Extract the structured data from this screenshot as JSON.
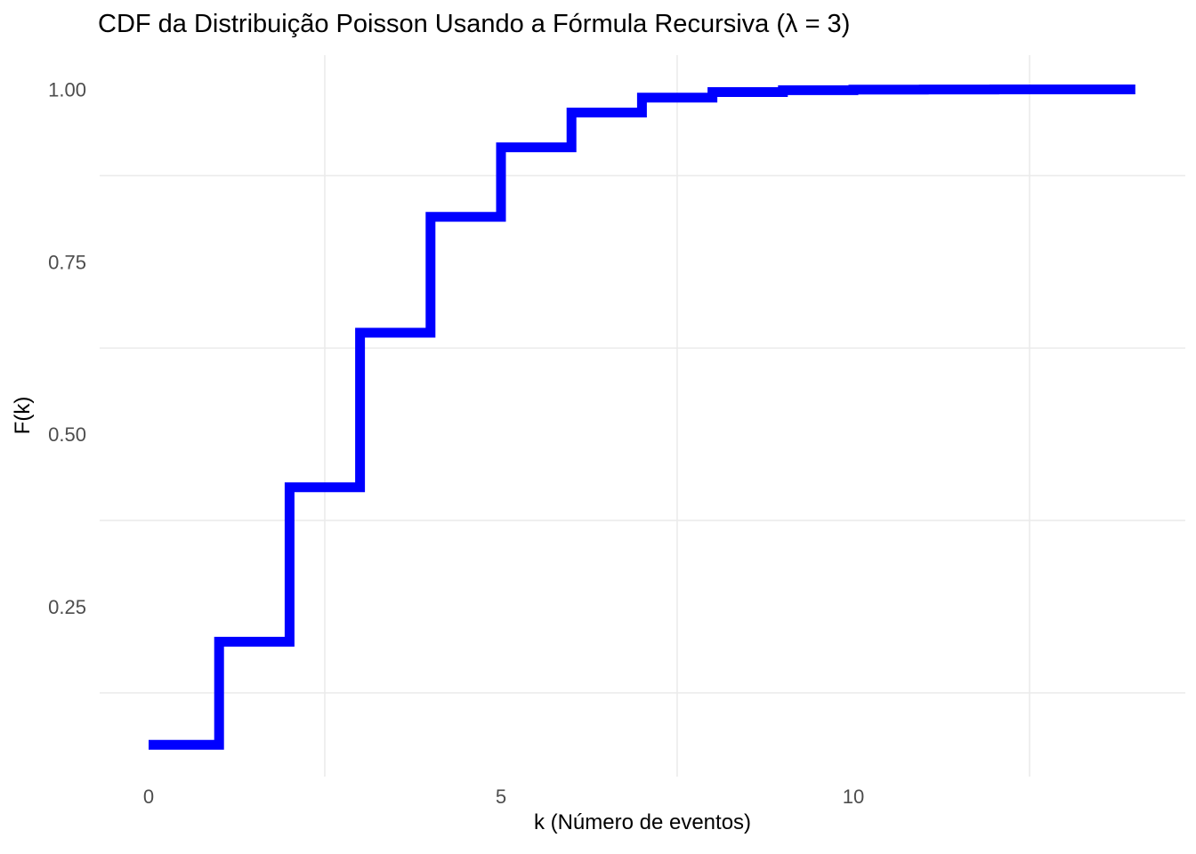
{
  "chart_data": {
    "type": "line",
    "subtype": "step-cdf",
    "title": "CDF da Distribuição Poisson Usando a Fórmula Recursiva (λ = 3)",
    "xlabel": "k (Número de eventos)",
    "ylabel": "F(k)",
    "x": [
      0,
      1,
      2,
      3,
      4,
      5,
      6,
      7,
      8,
      9,
      10,
      11,
      12,
      13,
      14
    ],
    "y": [
      0.0498,
      0.1991,
      0.4232,
      0.6472,
      0.8153,
      0.9161,
      0.9665,
      0.9881,
      0.9962,
      0.9989,
      0.9997,
      0.9999,
      1.0,
      1.0,
      1.0
    ],
    "x_ticks": [
      0,
      5,
      10
    ],
    "x_tick_labels": [
      "0",
      "5",
      "10"
    ],
    "y_ticks": [
      0.25,
      0.5,
      0.75,
      1.0
    ],
    "y_tick_labels": [
      "0.25",
      "0.50",
      "0.75",
      "1.00"
    ],
    "x_minor_gridlines": [
      2.5,
      7.5,
      12.5
    ],
    "y_minor_gridlines": [
      0.125,
      0.375,
      0.625,
      0.875
    ],
    "xlim": [
      -0.694,
      14.71
    ],
    "ylim": [
      0.0036,
      1.0497
    ],
    "grid": "minor-only",
    "legend": "none",
    "line_color": "#0000FF",
    "line_width": 11,
    "grid_color": "#EBEBEB",
    "tick_label_color": "#4D4D4D",
    "axis_title_color": "#000000",
    "title_color": "#000000",
    "background_color": "#FFFFFF"
  }
}
